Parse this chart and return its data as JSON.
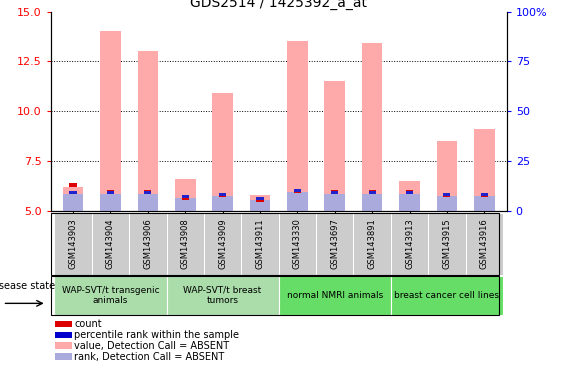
{
  "title": "GDS2514 / 1425392_a_at",
  "samples": [
    "GSM143903",
    "GSM143904",
    "GSM143906",
    "GSM143908",
    "GSM143909",
    "GSM143911",
    "GSM143330",
    "GSM143697",
    "GSM143891",
    "GSM143913",
    "GSM143915",
    "GSM143916"
  ],
  "value_absent": [
    6.2,
    14.0,
    13.0,
    6.6,
    10.9,
    5.8,
    13.5,
    11.5,
    13.4,
    6.5,
    8.5,
    9.1
  ],
  "rank_absent": [
    5.85,
    5.85,
    5.85,
    5.65,
    5.75,
    5.55,
    5.95,
    5.85,
    5.85,
    5.85,
    5.75,
    5.75
  ],
  "count_top": [
    6.2,
    5.85,
    5.85,
    5.55,
    5.72,
    5.45,
    5.92,
    5.85,
    5.85,
    5.85,
    5.72,
    5.72
  ],
  "percentile_top": [
    5.85,
    5.85,
    5.85,
    5.65,
    5.75,
    5.55,
    5.95,
    5.85,
    5.85,
    5.85,
    5.75,
    5.75
  ],
  "ylim_left": [
    5,
    15
  ],
  "ylim_right": [
    0,
    100
  ],
  "yticks_left": [
    5,
    7.5,
    10,
    12.5,
    15
  ],
  "yticks_right": [
    0,
    25,
    50,
    75,
    100
  ],
  "groups": [
    {
      "label": "WAP-SVT/t transgenic\nanimals",
      "indices": [
        0,
        1,
        2
      ],
      "color": "#AADDAA"
    },
    {
      "label": "WAP-SVT/t breast\ntumors",
      "indices": [
        3,
        4,
        5
      ],
      "color": "#AADDAA"
    },
    {
      "label": "normal NMRI animals",
      "indices": [
        6,
        7,
        8
      ],
      "color": "#66CC66"
    },
    {
      "label": "breast cancer cell lines",
      "indices": [
        9,
        10,
        11
      ],
      "color": "#66CC66"
    }
  ],
  "group_boundaries": [
    -0.5,
    2.5,
    5.5,
    8.5,
    11.5
  ],
  "disease_state_label": "disease state",
  "legend_items": [
    {
      "color": "#DD0000",
      "label": "count",
      "marker": "s"
    },
    {
      "color": "#0000CC",
      "label": "percentile rank within the sample",
      "marker": "s"
    },
    {
      "color": "#FFAAAA",
      "label": "value, Detection Call = ABSENT",
      "marker": "s"
    },
    {
      "color": "#AAAADD",
      "label": "rank, Detection Call = ABSENT",
      "marker": "s"
    }
  ],
  "bar_width": 0.55,
  "pink_color": "#FFAAAA",
  "light_blue_color": "#AAAADD",
  "red_color": "#DD0000",
  "blue_color": "#2222CC",
  "sample_bg_color": "#CCCCCC",
  "plot_bg": "#FFFFFF",
  "grid_color": "#000000",
  "spine_color": "#000000"
}
